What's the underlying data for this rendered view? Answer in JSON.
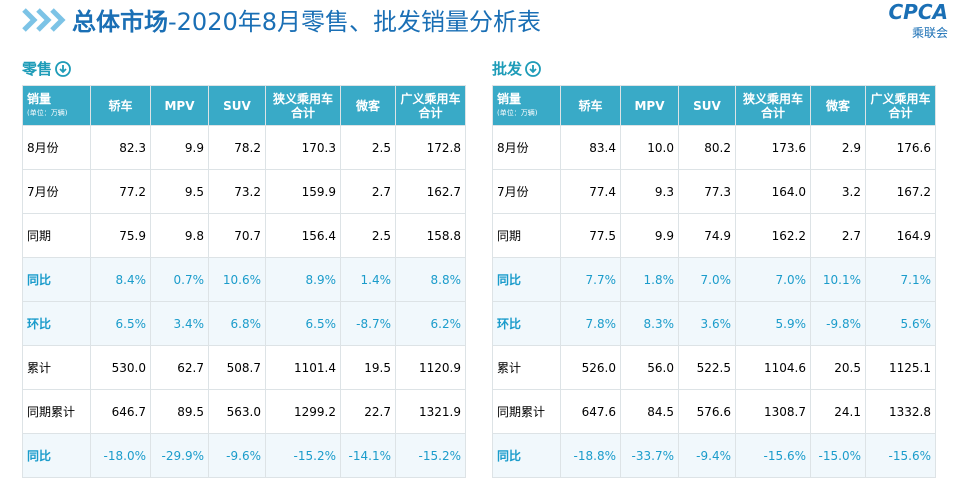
{
  "header": {
    "title_bold": "总体市场",
    "title_rest": "-2020年8月零售、批发销量分析表",
    "logo": "CPCA",
    "logo_sub": "乘联会"
  },
  "tables": [
    {
      "title": "零售",
      "columns": [
        [
          "销量",
          "(单位：万辆)"
        ],
        [
          "轿车"
        ],
        [
          "MPV"
        ],
        [
          "SUV"
        ],
        [
          "狭义乘用车",
          "合计"
        ],
        [
          "微客"
        ],
        [
          "广义乘用车",
          "合计"
        ]
      ],
      "rows": [
        [
          "8月份",
          "82.3",
          "9.9",
          "78.2",
          "170.3",
          "2.5",
          "172.8"
        ],
        [
          "7月份",
          "77.2",
          "9.5",
          "73.2",
          "159.9",
          "2.7",
          "162.7"
        ],
        [
          "同期",
          "75.9",
          "9.8",
          "70.7",
          "156.4",
          "2.5",
          "158.8"
        ],
        [
          "同比",
          "8.4%",
          "0.7%",
          "10.6%",
          "8.9%",
          "1.4%",
          "8.8%"
        ],
        [
          "环比",
          "6.5%",
          "3.4%",
          "6.8%",
          "6.5%",
          "-8.7%",
          "6.2%"
        ],
        [
          "累计",
          "530.0",
          "62.7",
          "508.7",
          "1101.4",
          "19.5",
          "1120.9"
        ],
        [
          "同期累计",
          "646.7",
          "89.5",
          "563.0",
          "1299.2",
          "22.7",
          "1321.9"
        ],
        [
          "同比",
          "-18.0%",
          "-29.9%",
          "-9.6%",
          "-15.2%",
          "-14.1%",
          "-15.2%"
        ]
      ]
    },
    {
      "title": "批发",
      "columns": [
        [
          "销量",
          "(单位：万辆)"
        ],
        [
          "轿车"
        ],
        [
          "MPV"
        ],
        [
          "SUV"
        ],
        [
          "狭义乘用车",
          "合计"
        ],
        [
          "微客"
        ],
        [
          "广义乘用车",
          "合计"
        ]
      ],
      "rows": [
        [
          "8月份",
          "83.4",
          "10.0",
          "80.2",
          "173.6",
          "2.9",
          "176.6"
        ],
        [
          "7月份",
          "77.4",
          "9.3",
          "77.3",
          "164.0",
          "3.2",
          "167.2"
        ],
        [
          "同期",
          "77.5",
          "9.9",
          "74.9",
          "162.2",
          "2.7",
          "164.9"
        ],
        [
          "同比",
          "7.7%",
          "1.8%",
          "7.0%",
          "7.0%",
          "10.1%",
          "7.1%"
        ],
        [
          "环比",
          "7.8%",
          "8.3%",
          "3.6%",
          "5.9%",
          "-9.8%",
          "5.6%"
        ],
        [
          "累计",
          "526.0",
          "56.0",
          "522.5",
          "1104.6",
          "20.5",
          "1125.1"
        ],
        [
          "同期累计",
          "647.6",
          "84.5",
          "576.6",
          "1308.7",
          "24.1",
          "1332.8"
        ],
        [
          "同比",
          "-18.8%",
          "-33.7%",
          "-9.4%",
          "-15.6%",
          "-15.0%",
          "-15.6%"
        ]
      ]
    }
  ]
}
